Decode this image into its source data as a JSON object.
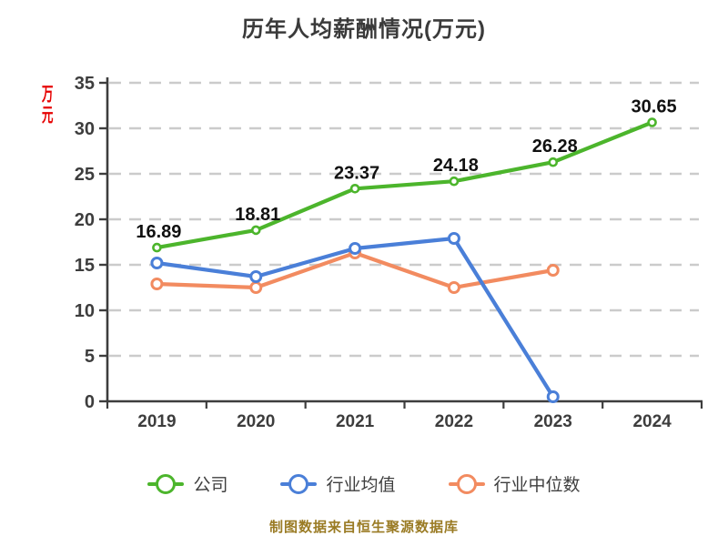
{
  "title": "历年人均薪酬情况(万元)",
  "y_axis_unit": "万元",
  "footer": "制图数据来自恒生聚源数据库",
  "colors": {
    "company_green": "#4cb52c",
    "industry_avg_blue": "#4a7fd8",
    "industry_median_orange": "#f28b60",
    "gridline": "#cbcbcb",
    "axis": "#3d3d3d",
    "data_label": "#111111",
    "unit_label_red": "#e60000",
    "footer_text": "#9a7b24"
  },
  "chart_data": {
    "type": "line",
    "title": "历年人均薪酬情况(万元)",
    "xlabel": "",
    "ylabel": "万元",
    "categories": [
      "2019",
      "2020",
      "2021",
      "2022",
      "2023",
      "2024"
    ],
    "series": [
      {
        "name": "公司",
        "color": "#4cb52c",
        "data_labels": true,
        "values": [
          16.89,
          18.81,
          23.37,
          24.18,
          26.28,
          30.65
        ]
      },
      {
        "name": "行业均值",
        "color": "#4a7fd8",
        "data_labels": false,
        "values": [
          15.2,
          13.7,
          16.8,
          17.9,
          0.5,
          null
        ]
      },
      {
        "name": "行业中位数",
        "color": "#f28b60",
        "data_labels": false,
        "values": [
          12.9,
          12.5,
          16.3,
          12.5,
          14.4,
          null
        ]
      }
    ],
    "ylim": [
      0,
      35
    ],
    "ytick_step": 5,
    "grid": "dashed-horizontal",
    "legend_position": "bottom"
  }
}
